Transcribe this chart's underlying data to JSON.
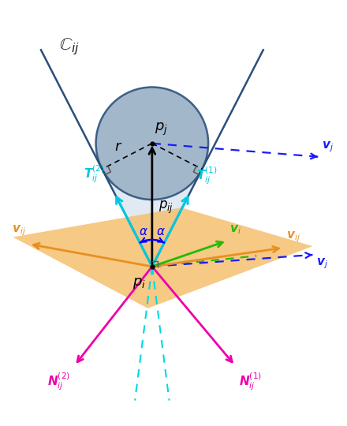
{
  "pi": [
    0.0,
    0.0
  ],
  "pj": [
    0.0,
    2.3
  ],
  "r": 1.05,
  "cone_color": "#d8e4ee",
  "cone_edge_color": "#2a4f7a",
  "circle_color": "#9ab0c4",
  "circle_edge_color": "#2a4f7a",
  "orange_color": "#f5c070",
  "orange_alpha": 0.85,
  "cyan_color": "#00c8e0",
  "magenta_color": "#ee00aa",
  "orange_arrow_color": "#e89020",
  "green_color": "#22bb00",
  "blue_color": "#1a1aff",
  "black": "#000000",
  "pi_label": "$p_i$",
  "pj_label": "$p_j$",
  "pij_label": "$p_{ij}$",
  "r_label": "$r$",
  "cij_label": "$\\mathbb{C}_{ij}$",
  "T1_label": "$\\boldsymbol{T}_{ij}^{(1)}$",
  "T2_label": "$\\boldsymbol{T}_{ij}^{(2)}$",
  "N1_label": "$\\boldsymbol{N}_{ij}^{(1)}$",
  "N2_label": "$\\boldsymbol{N}_{ij}^{(2)}$",
  "vij_label": "$\\boldsymbol{v}_{ij}$",
  "vi_label": "$\\boldsymbol{v}_{i}$",
  "vj_label": "$\\boldsymbol{v}_{j}$",
  "alpha_label": "$\\alpha$"
}
